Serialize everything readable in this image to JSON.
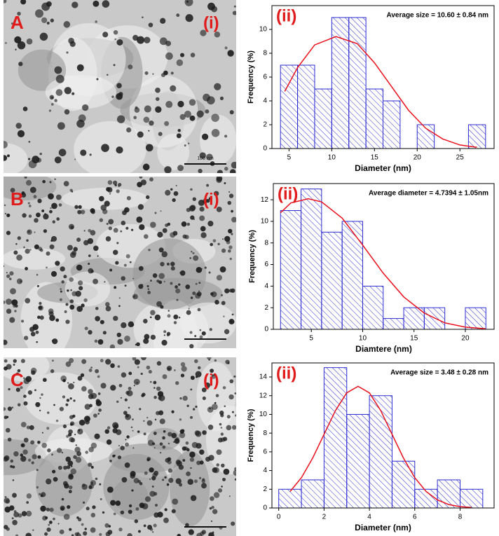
{
  "panels": [
    {
      "label": "A",
      "image_label": "(i)",
      "scale_bar": "100 nm"
    },
    {
      "label": "B",
      "image_label": "(i)"
    },
    {
      "label": "C",
      "image_label": "(i)"
    }
  ],
  "chart_data": [
    {
      "type": "histogram",
      "title": "(ii)",
      "annotation": "Average size = 10.60 ± 0.84 nm",
      "x_label": "Diameter (nm)",
      "y_label": "Frequency (%)",
      "color": "#2b2bd0",
      "bins": [
        4,
        6,
        8,
        10,
        12,
        14,
        16,
        18,
        20,
        22,
        24,
        26,
        28
      ],
      "values": [
        7,
        7,
        5,
        11,
        11,
        5,
        4,
        0,
        2,
        0,
        0,
        2
      ],
      "fit": {
        "color": "#e8101c",
        "x": [
          4.5,
          6,
          8,
          10.5,
          13,
          15,
          17,
          19,
          21,
          23,
          25,
          27
        ],
        "values": [
          4.8,
          6.8,
          8.7,
          9.4,
          8.8,
          7.2,
          5.2,
          3.2,
          1.7,
          0.8,
          0.3,
          0.1
        ]
      },
      "xlim": [
        3,
        29
      ],
      "ylim": [
        0,
        12
      ],
      "xticks": [
        5,
        10,
        15,
        20,
        25
      ],
      "yticks": [
        0,
        2,
        4,
        6,
        8,
        10
      ]
    },
    {
      "type": "histogram",
      "title": "(ii)",
      "annotation": "Average diameter = 4.7394 ± 1.05nm",
      "x_label": "Diamtere (nm)",
      "y_label": "Frequency (%)",
      "color": "#2b2bd0",
      "bins": [
        2,
        4,
        6,
        8,
        10,
        12,
        14,
        16,
        18,
        20,
        22
      ],
      "values": [
        11,
        13,
        9,
        10,
        4,
        1,
        2,
        2,
        0,
        2
      ],
      "fit": {
        "color": "#e8101c",
        "x": [
          2,
          3,
          4.7,
          6,
          8,
          10,
          12,
          14,
          16,
          18,
          20,
          22
        ],
        "values": [
          10.8,
          11.7,
          12.1,
          11.8,
          10.3,
          7.8,
          5.2,
          3.0,
          1.5,
          0.6,
          0.2,
          0.05
        ]
      },
      "xlim": [
        1.3,
        22.8
      ],
      "ylim": [
        0,
        13.5
      ],
      "xticks": [
        5,
        10,
        15,
        20
      ],
      "yticks": [
        0,
        2,
        4,
        6,
        8,
        10,
        12
      ]
    },
    {
      "type": "histogram",
      "title": "(ii)",
      "annotation": "Average size = 3.48 ± 0.28 nm",
      "x_label": "Diameter (nm)",
      "y_label": "Frequency (%)",
      "color": "#2b2bd0",
      "bins": [
        0,
        1,
        2,
        3,
        4,
        5,
        6,
        7,
        8,
        9
      ],
      "values": [
        2,
        3,
        15,
        10,
        12,
        5,
        2,
        3,
        2
      ],
      "fit": {
        "color": "#e8101c",
        "x": [
          0.5,
          1,
          1.5,
          2,
          2.5,
          3,
          3.5,
          4,
          4.5,
          5,
          5.5,
          6,
          6.5,
          7,
          7.5,
          8,
          8.5
        ],
        "values": [
          1.76,
          3.24,
          5.35,
          7.88,
          10.4,
          12.3,
          13,
          12.3,
          10.4,
          7.88,
          5.35,
          3.24,
          1.76,
          0.86,
          0.37,
          0.14,
          0.05
        ]
      },
      "xlim": [
        -0.3,
        9.5
      ],
      "ylim": [
        0,
        15.5
      ],
      "xticks": [
        0,
        2,
        4,
        6,
        8
      ],
      "yticks": [
        0,
        2,
        4,
        6,
        8,
        10,
        12,
        14
      ]
    }
  ]
}
